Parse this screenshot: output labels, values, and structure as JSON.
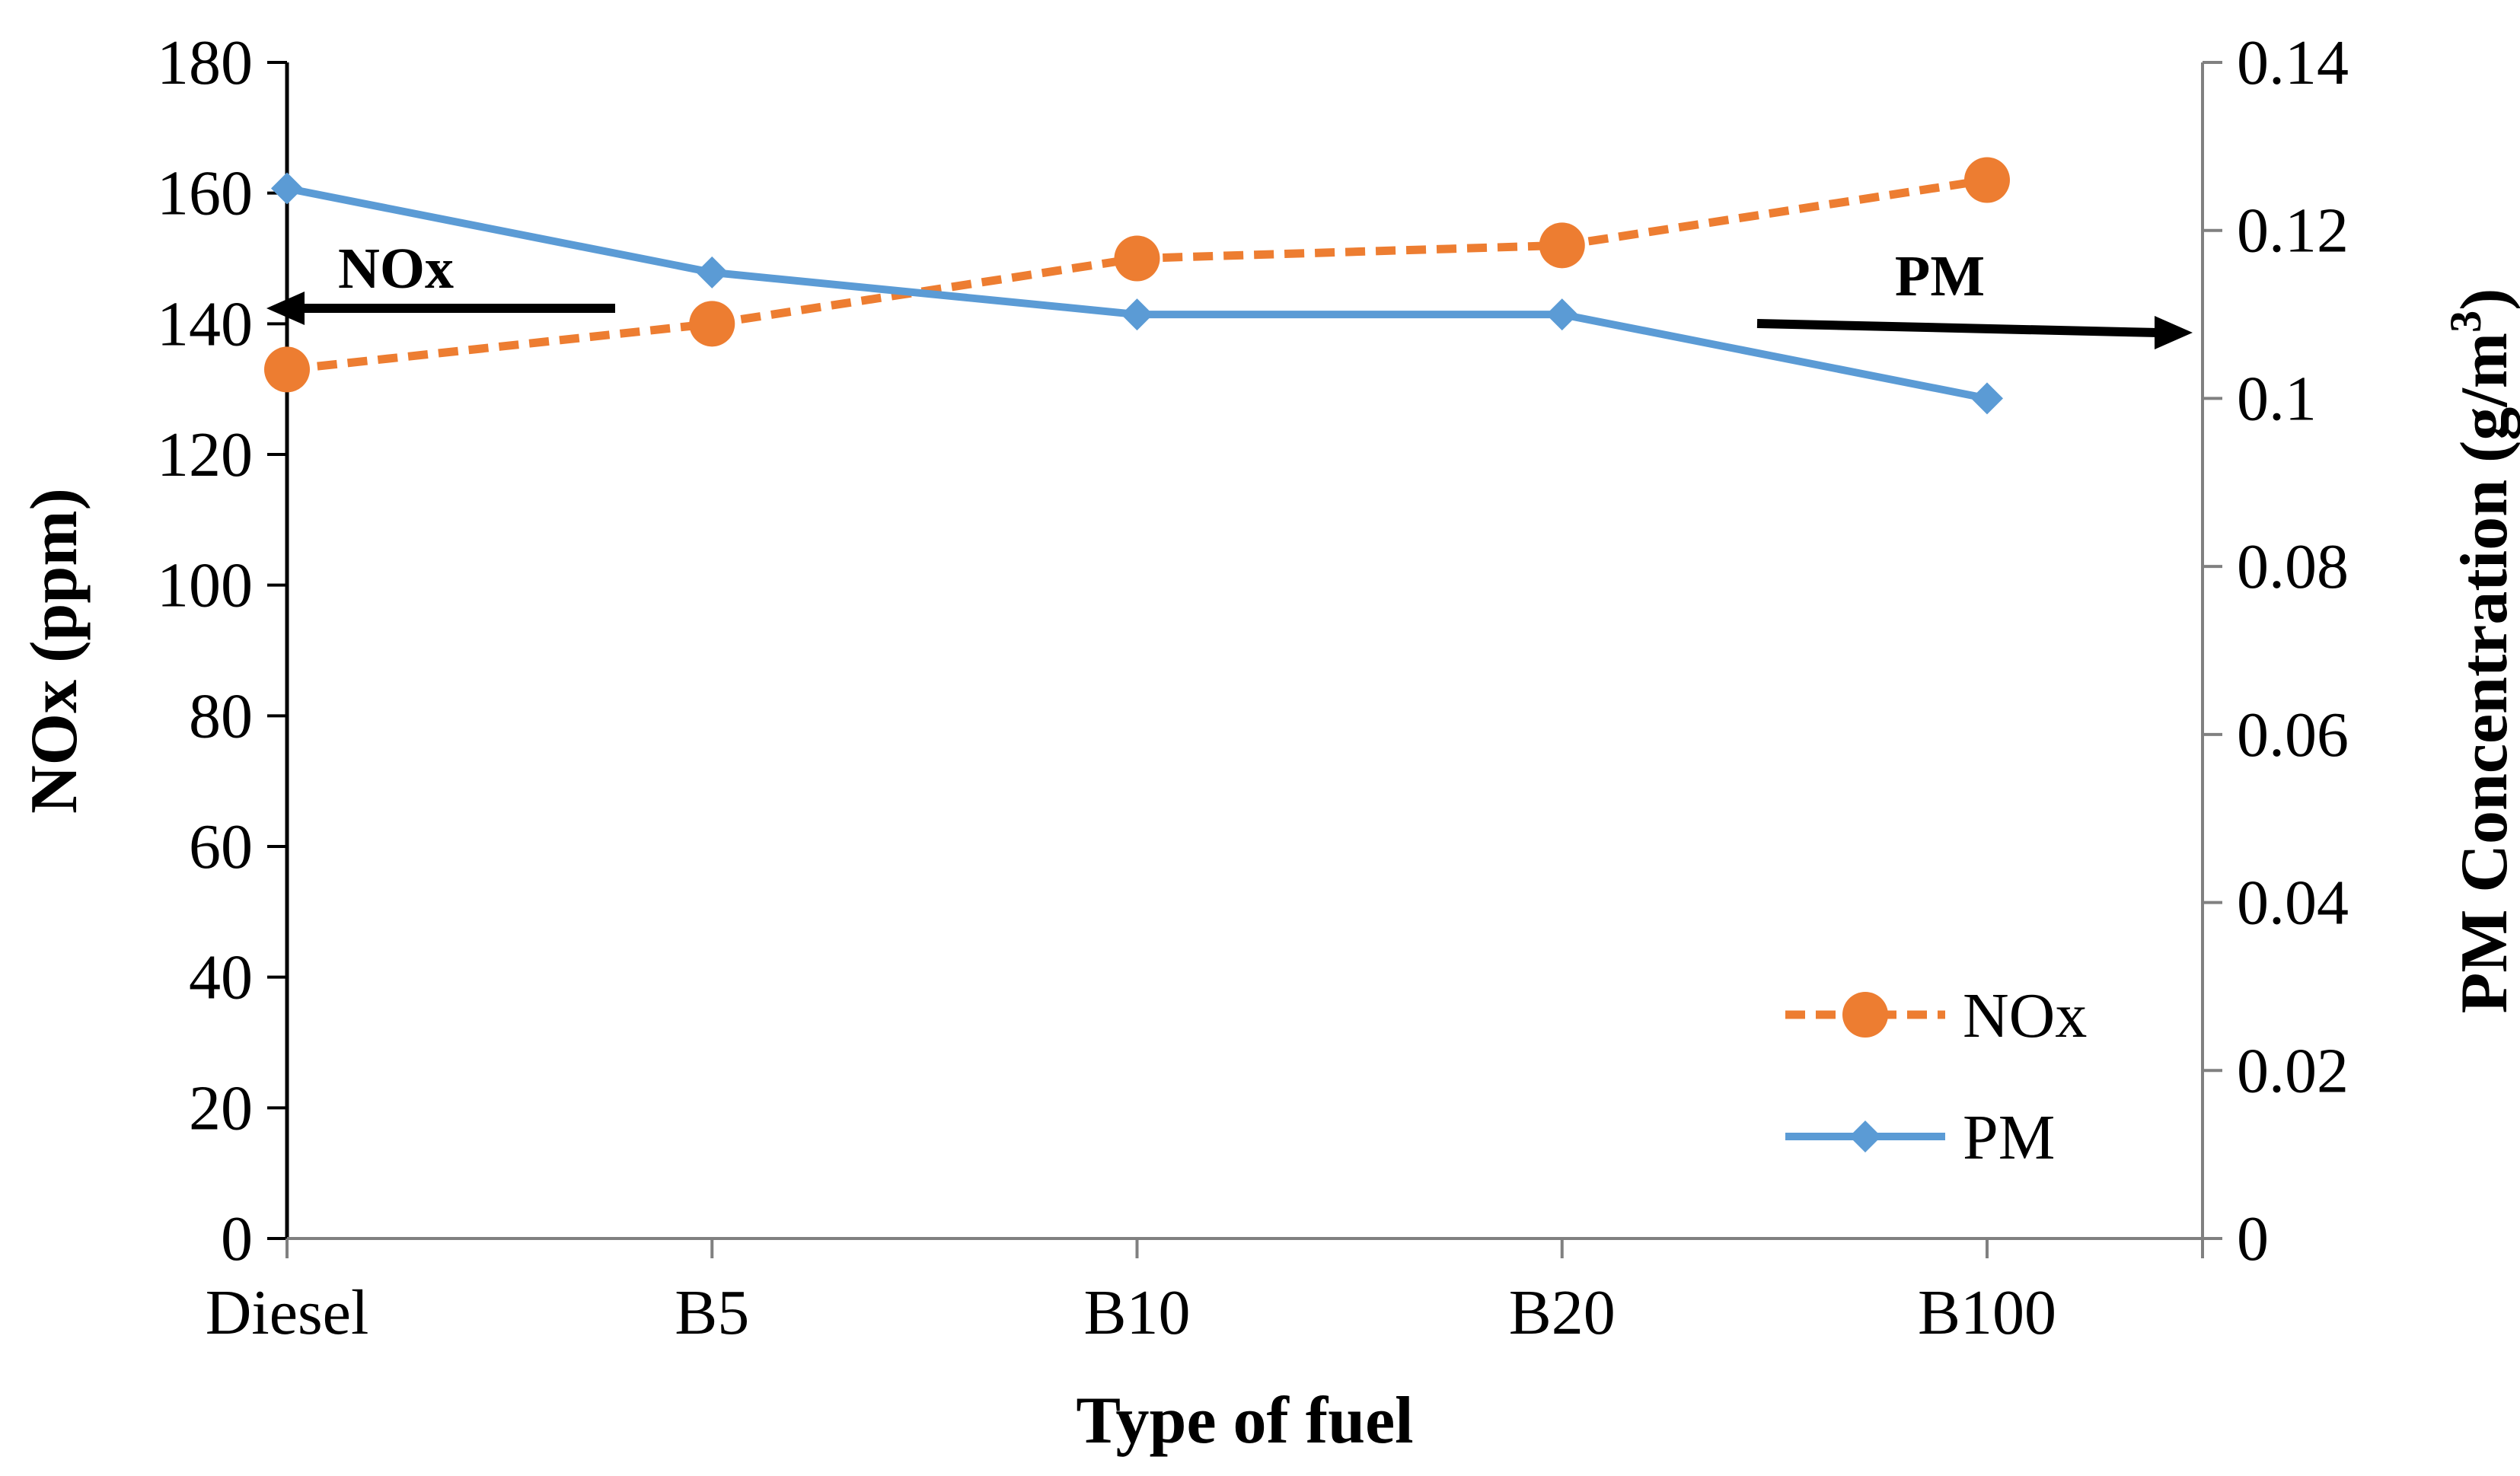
{
  "chart_data": {
    "type": "line",
    "title": "",
    "categories": [
      "Diesel",
      "B5",
      "B10",
      "B20",
      "B100"
    ],
    "xlabel": "Type of fuel",
    "ylabel_left": "NOx (ppm)",
    "ylabel_right_prefix": "PM Concentration (g/m",
    "ylabel_right_sup": "3",
    "ylabel_right_suffix": ")",
    "ylim_left": [
      0,
      180
    ],
    "ylim_right": [
      0,
      0.14
    ],
    "yticks_left": [
      "0",
      "20",
      "40",
      "60",
      "80",
      "100",
      "120",
      "140",
      "160",
      "180"
    ],
    "yticks_right": [
      "0",
      "0.02",
      "0.04",
      "0.06",
      "0.08",
      "0.1",
      "0.12",
      "0.14"
    ],
    "grid": false,
    "legend_position": "bottom-right",
    "series": [
      {
        "name": "NOx",
        "axis": "left",
        "values": [
          133,
          140,
          150,
          152,
          162
        ],
        "color": "#ED7D31",
        "line_style": "dashed",
        "marker": "circle"
      },
      {
        "name": "PM",
        "axis": "right",
        "values": [
          0.125,
          0.115,
          0.11,
          0.11,
          0.1
        ],
        "color": "#5B9BD5",
        "line_style": "solid",
        "marker": "diamond"
      }
    ],
    "annotations": [
      {
        "text": "NOx",
        "arrow": "left"
      },
      {
        "text": "PM",
        "arrow": "right"
      }
    ]
  }
}
